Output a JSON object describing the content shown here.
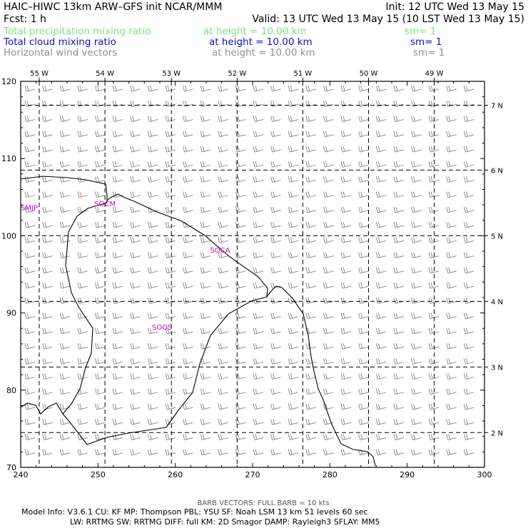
{
  "header": {
    "title": "HAIC–HIWC 13km ARW–GFS init   NCAR/MMM",
    "init": "Init: 12 UTC Wed 13 May 15",
    "fcst": "Fcst:     1 h",
    "valid": "Valid: 13 UTC Wed 13 May 15 (10 LST Wed 13 May 15)"
  },
  "fields": [
    {
      "name": "Total precipitation mixing ratio",
      "height": "at height = 10.00 km",
      "smooth": "sm= 1",
      "color": "#80e080"
    },
    {
      "name": "Total cloud mixing ratio",
      "height": "at height = 10.00 km",
      "smooth": "sm= 1",
      "color": "#1010c0"
    },
    {
      "name": "Horizontal wind vectors",
      "height": "at height = 10.00 km",
      "smooth": "sm= 1",
      "color": "#909090"
    }
  ],
  "map": {
    "x_range": [
      240,
      300
    ],
    "y_range": [
      70,
      120
    ],
    "x_ticks": [
      "240",
      "250",
      "260",
      "270",
      "280",
      "290",
      "300"
    ],
    "y_ticks": [
      "70",
      "80",
      "90",
      "100",
      "110",
      "120"
    ],
    "lon_labels": [
      {
        "label": "55 W",
        "x": 242.4
      },
      {
        "label": "54 W",
        "x": 250.9
      },
      {
        "label": "53 W",
        "x": 259.5
      },
      {
        "label": "52 W",
        "x": 268.0
      },
      {
        "label": "51 W",
        "x": 276.5
      },
      {
        "label": "50 W",
        "x": 285.0
      },
      {
        "label": "49 W",
        "x": 293.5
      }
    ],
    "lat_labels": [
      {
        "label": "7 N",
        "y": 116.9
      },
      {
        "label": "6 N",
        "y": 108.5
      },
      {
        "label": "5 N",
        "y": 100.0
      },
      {
        "label": "4 N",
        "y": 91.5
      },
      {
        "label": "3 N",
        "y": 83.0
      },
      {
        "label": "2 N",
        "y": 74.5
      }
    ],
    "stations": [
      {
        "label": "SMJP",
        "x": 241.1,
        "y": 103.7,
        "color": "#cc00cc"
      },
      {
        "label": "SOCM",
        "x": 250.9,
        "y": 104.2,
        "color": "#cc00cc"
      },
      {
        "label": "SOCA",
        "x": 265.8,
        "y": 98.2,
        "color": "#cc00cc"
      },
      {
        "label": "SOOS",
        "x": 258.3,
        "y": 88.2,
        "color": "#cc00cc"
      }
    ],
    "wind": {
      "rows": 25,
      "cols": 26,
      "barb_color": "#909090"
    }
  },
  "footer": {
    "barb_note": "BARB VECTORS:  FULL BARB = 10 kts",
    "model_line1": "Model Info: V3.6.1     CU: KF       MP: Thompson     PBL: YSU       SF: Noah LSM      13 km     51 levels    60 sec",
    "model_line2": "LW: RRTMG    SW: RRTMG   DIFF: full    KM: 2D Smagor DAMP: Rayleigh3    SFLAY: MM5"
  }
}
